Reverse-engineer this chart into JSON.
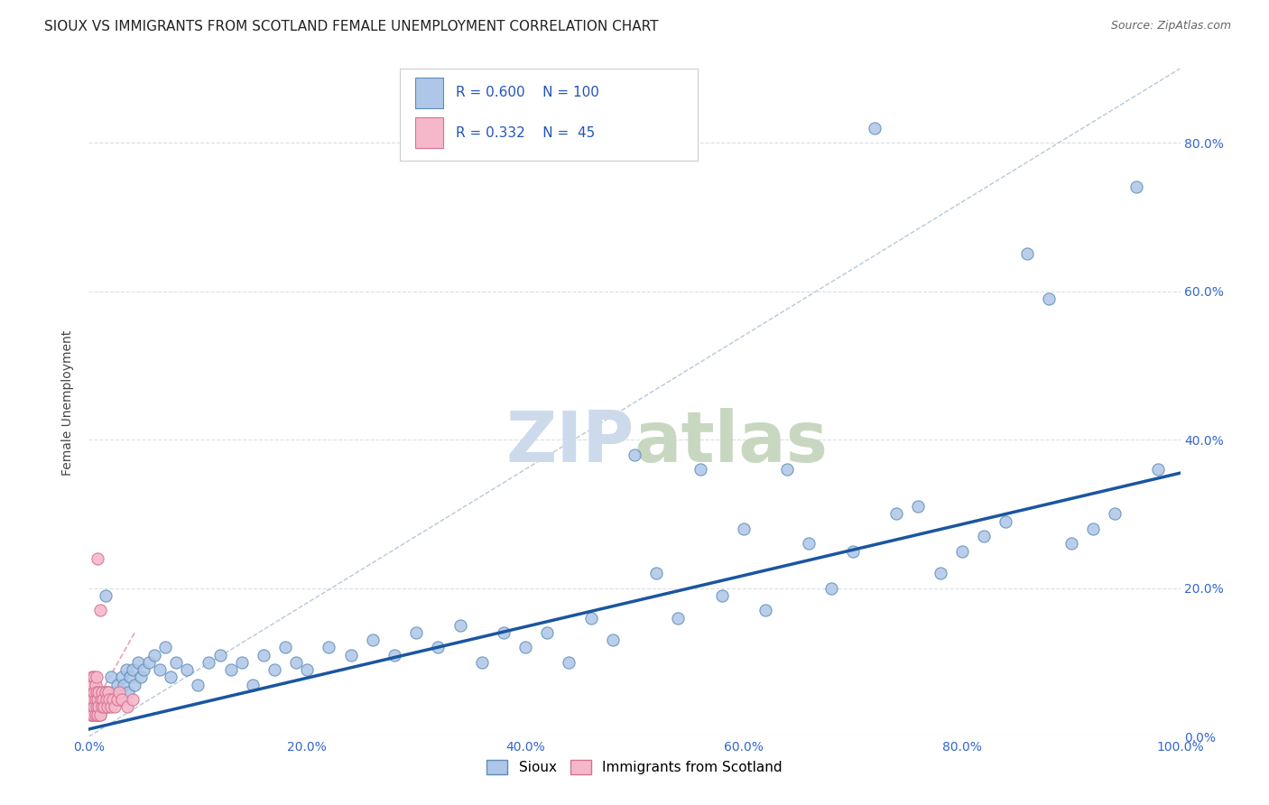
{
  "title": "SIOUX VS IMMIGRANTS FROM SCOTLAND FEMALE UNEMPLOYMENT CORRELATION CHART",
  "source": "Source: ZipAtlas.com",
  "ylabel": "Female Unemployment",
  "sioux_color": "#aec6e8",
  "sioux_edge_color": "#5b8db8",
  "scotland_color": "#f5b8cb",
  "scotland_edge_color": "#d97090",
  "trend_sioux_color": "#1a56a0",
  "trend_scotland_color": "#e8a0b8",
  "watermark_color": "#ccdaec",
  "legend_sioux_label": "Sioux",
  "legend_scotland_label": "Immigrants from Scotland",
  "R_sioux": "0.600",
  "N_sioux": "100",
  "R_scotland": "0.332",
  "N_scotland": "45",
  "xlim": [
    0.0,
    1.0
  ],
  "ylim": [
    0.0,
    0.9
  ],
  "grid_color": "#d8dfe8",
  "background_color": "#ffffff",
  "title_fontsize": 11,
  "axis_label_fontsize": 10,
  "tick_fontsize": 10,
  "marker_size": 90,
  "diag_line_color": "#b8c8d8",
  "sioux_x": [
    0.001,
    0.002,
    0.002,
    0.003,
    0.003,
    0.004,
    0.004,
    0.005,
    0.005,
    0.006,
    0.006,
    0.007,
    0.007,
    0.008,
    0.008,
    0.009,
    0.009,
    0.01,
    0.01,
    0.011,
    0.012,
    0.013,
    0.014,
    0.015,
    0.016,
    0.017,
    0.018,
    0.019,
    0.02,
    0.022,
    0.024,
    0.026,
    0.028,
    0.03,
    0.032,
    0.034,
    0.036,
    0.038,
    0.04,
    0.042,
    0.045,
    0.048,
    0.05,
    0.055,
    0.06,
    0.065,
    0.07,
    0.075,
    0.08,
    0.09,
    0.1,
    0.11,
    0.12,
    0.13,
    0.14,
    0.15,
    0.16,
    0.17,
    0.18,
    0.19,
    0.2,
    0.22,
    0.24,
    0.26,
    0.28,
    0.3,
    0.32,
    0.34,
    0.36,
    0.38,
    0.4,
    0.42,
    0.44,
    0.46,
    0.48,
    0.5,
    0.52,
    0.54,
    0.56,
    0.58,
    0.6,
    0.62,
    0.64,
    0.66,
    0.68,
    0.7,
    0.72,
    0.74,
    0.76,
    0.78,
    0.8,
    0.82,
    0.84,
    0.86,
    0.88,
    0.9,
    0.92,
    0.94,
    0.96,
    0.98
  ],
  "sioux_y": [
    0.04,
    0.03,
    0.05,
    0.04,
    0.06,
    0.03,
    0.05,
    0.04,
    0.06,
    0.03,
    0.05,
    0.04,
    0.06,
    0.03,
    0.05,
    0.04,
    0.06,
    0.03,
    0.05,
    0.04,
    0.05,
    0.04,
    0.06,
    0.19,
    0.05,
    0.04,
    0.06,
    0.05,
    0.08,
    0.05,
    0.06,
    0.07,
    0.05,
    0.08,
    0.07,
    0.09,
    0.06,
    0.08,
    0.09,
    0.07,
    0.1,
    0.08,
    0.09,
    0.1,
    0.11,
    0.09,
    0.12,
    0.08,
    0.1,
    0.09,
    0.07,
    0.1,
    0.11,
    0.09,
    0.1,
    0.07,
    0.11,
    0.09,
    0.12,
    0.1,
    0.09,
    0.12,
    0.11,
    0.13,
    0.11,
    0.14,
    0.12,
    0.15,
    0.1,
    0.14,
    0.12,
    0.14,
    0.1,
    0.16,
    0.13,
    0.38,
    0.22,
    0.16,
    0.36,
    0.19,
    0.28,
    0.17,
    0.36,
    0.26,
    0.2,
    0.25,
    0.82,
    0.3,
    0.31,
    0.22,
    0.25,
    0.27,
    0.29,
    0.65,
    0.59,
    0.26,
    0.28,
    0.3,
    0.74,
    0.36
  ],
  "scotland_x": [
    0.001,
    0.001,
    0.002,
    0.002,
    0.002,
    0.003,
    0.003,
    0.003,
    0.004,
    0.004,
    0.004,
    0.005,
    0.005,
    0.005,
    0.006,
    0.006,
    0.006,
    0.007,
    0.007,
    0.007,
    0.008,
    0.008,
    0.008,
    0.009,
    0.009,
    0.01,
    0.01,
    0.011,
    0.012,
    0.012,
    0.013,
    0.014,
    0.015,
    0.016,
    0.017,
    0.018,
    0.019,
    0.02,
    0.022,
    0.024,
    0.026,
    0.028,
    0.03,
    0.035,
    0.04
  ],
  "scotland_y": [
    0.04,
    0.06,
    0.03,
    0.05,
    0.07,
    0.04,
    0.06,
    0.08,
    0.03,
    0.05,
    0.07,
    0.04,
    0.06,
    0.08,
    0.03,
    0.05,
    0.07,
    0.04,
    0.06,
    0.08,
    0.03,
    0.05,
    0.24,
    0.04,
    0.06,
    0.03,
    0.17,
    0.05,
    0.04,
    0.06,
    0.05,
    0.04,
    0.06,
    0.05,
    0.04,
    0.06,
    0.05,
    0.04,
    0.05,
    0.04,
    0.05,
    0.06,
    0.05,
    0.04,
    0.05
  ],
  "trend_sioux_x0": 0.0,
  "trend_sioux_y0": 0.01,
  "trend_sioux_x1": 1.0,
  "trend_sioux_y1": 0.355,
  "trend_scotland_x0": 0.0,
  "trend_scotland_y0": 0.03,
  "trend_scotland_x1": 0.042,
  "trend_scotland_y1": 0.14
}
